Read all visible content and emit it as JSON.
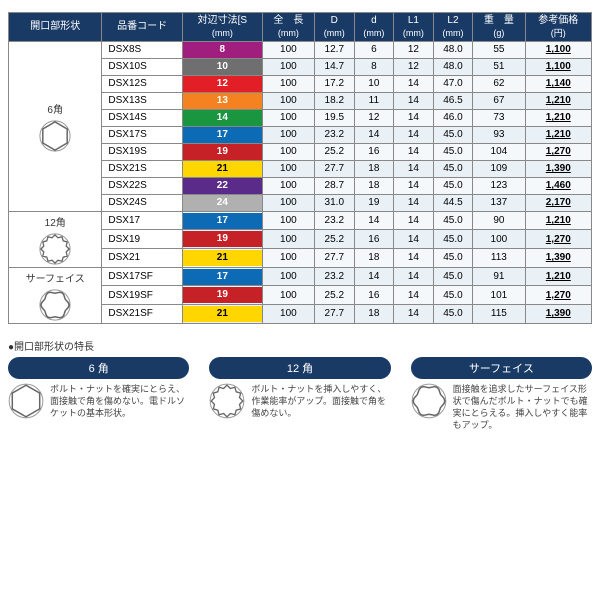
{
  "columns": [
    {
      "l1": "開口部形状",
      "l2": ""
    },
    {
      "l1": "品番コード",
      "l2": ""
    },
    {
      "l1": "対辺寸法[S",
      "l2": "(mm)"
    },
    {
      "l1": "全　長",
      "l2": "(mm)"
    },
    {
      "l1": "D",
      "l2": "(mm)"
    },
    {
      "l1": "d",
      "l2": "(mm)"
    },
    {
      "l1": "L1",
      "l2": "(mm)"
    },
    {
      "l1": "L2",
      "l2": "(mm)"
    },
    {
      "l1": "重　量",
      "l2": "(g)"
    },
    {
      "l1": "参考価格",
      "l2": "(円)"
    }
  ],
  "groups": [
    {
      "label": "6角",
      "shape": "hex",
      "rows": [
        {
          "code": "DSX8S",
          "size": "8",
          "chip": "#a01f7e",
          "len": "100",
          "D": "12.7",
          "d": "6",
          "L1": "12",
          "L2": "48.0",
          "wt": "55",
          "price": "1,100"
        },
        {
          "code": "DSX10S",
          "size": "10",
          "chip": "#6f6f6f",
          "len": "100",
          "D": "14.7",
          "d": "8",
          "L1": "12",
          "L2": "48.0",
          "wt": "51",
          "price": "1,100"
        },
        {
          "code": "DSX12S",
          "size": "12",
          "chip": "#e21f26",
          "len": "100",
          "D": "17.2",
          "d": "10",
          "L1": "14",
          "L2": "47.0",
          "wt": "62",
          "price": "1,140"
        },
        {
          "code": "DSX13S",
          "size": "13",
          "chip": "#f58220",
          "len": "100",
          "D": "18.2",
          "d": "11",
          "L1": "14",
          "L2": "46.5",
          "wt": "67",
          "price": "1,210"
        },
        {
          "code": "DSX14S",
          "size": "14",
          "chip": "#1a9641",
          "len": "100",
          "D": "19.5",
          "d": "12",
          "L1": "14",
          "L2": "46.0",
          "wt": "73",
          "price": "1,210"
        },
        {
          "code": "DSX17S",
          "size": "17",
          "chip": "#0d6bb5",
          "len": "100",
          "D": "23.2",
          "d": "14",
          "L1": "14",
          "L2": "45.0",
          "wt": "93",
          "price": "1,210"
        },
        {
          "code": "DSX19S",
          "size": "19",
          "chip": "#c62127",
          "len": "100",
          "D": "25.2",
          "d": "16",
          "L1": "14",
          "L2": "45.0",
          "wt": "104",
          "price": "1,270"
        },
        {
          "code": "DSX21S",
          "size": "21",
          "chip": "#ffd600",
          "chipText": "#000",
          "len": "100",
          "D": "27.7",
          "d": "18",
          "L1": "14",
          "L2": "45.0",
          "wt": "109",
          "price": "1,390"
        },
        {
          "code": "DSX22S",
          "size": "22",
          "chip": "#5b2b8a",
          "len": "100",
          "D": "28.7",
          "d": "18",
          "L1": "14",
          "L2": "45.0",
          "wt": "123",
          "price": "1,460"
        },
        {
          "code": "DSX24S",
          "size": "24",
          "chip": "#b0b0b0",
          "len": "100",
          "D": "31.0",
          "d": "19",
          "L1": "14",
          "L2": "44.5",
          "wt": "137",
          "price": "2,170"
        }
      ]
    },
    {
      "label": "12角",
      "shape": "twelve",
      "rows": [
        {
          "code": "DSX17",
          "size": "17",
          "chip": "#0d6bb5",
          "len": "100",
          "D": "23.2",
          "d": "14",
          "L1": "14",
          "L2": "45.0",
          "wt": "90",
          "price": "1,210"
        },
        {
          "code": "DSX19",
          "size": "19",
          "chip": "#c62127",
          "len": "100",
          "D": "25.2",
          "d": "16",
          "L1": "14",
          "L2": "45.0",
          "wt": "100",
          "price": "1,270"
        },
        {
          "code": "DSX21",
          "size": "21",
          "chip": "#ffd600",
          "chipText": "#000",
          "len": "100",
          "D": "27.7",
          "d": "18",
          "L1": "14",
          "L2": "45.0",
          "wt": "113",
          "price": "1,390"
        }
      ]
    },
    {
      "label": "サーフェイス",
      "shape": "surface",
      "rows": [
        {
          "code": "DSX17SF",
          "size": "17",
          "chip": "#0d6bb5",
          "len": "100",
          "D": "23.2",
          "d": "14",
          "L1": "14",
          "L2": "45.0",
          "wt": "91",
          "price": "1,210"
        },
        {
          "code": "DSX19SF",
          "size": "19",
          "chip": "#c62127",
          "len": "100",
          "D": "25.2",
          "d": "16",
          "L1": "14",
          "L2": "45.0",
          "wt": "101",
          "price": "1,270"
        },
        {
          "code": "DSX21SF",
          "size": "21",
          "chip": "#ffd600",
          "chipText": "#000",
          "len": "100",
          "D": "27.7",
          "d": "18",
          "L1": "14",
          "L2": "45.0",
          "wt": "115",
          "price": "1,390"
        }
      ]
    }
  ],
  "features": {
    "heading": "●開口部形状の特長",
    "items": [
      {
        "title": "6 角",
        "shape": "hex",
        "text": "ボルト・ナットを確実にとらえ、面接触で角を傷めない。電ドルソケットの基本形状。"
      },
      {
        "title": "12 角",
        "shape": "twelve",
        "text": "ボルト・ナットを挿入しやすく、作業能率がアップ。面接触で角を傷めない。"
      },
      {
        "title": "サーフェイス",
        "shape": "surface",
        "text": "面接触を追求したサーフェイス形状で傷んだボルト・ナットでも確実にとらえる。挿入しやすく能率もアップ。"
      }
    ]
  }
}
